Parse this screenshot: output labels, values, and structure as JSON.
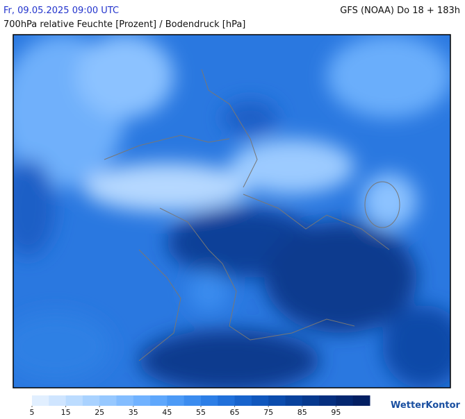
{
  "header": {
    "datetime": "Fr, 09.05.2025 09:00 UTC",
    "model": "GFS (NOAA) Do 18 + 183h",
    "title": "700hPa relative Feuchte [Prozent] / Bodendruck [hPa]"
  },
  "colorbar": {
    "range": [
      5,
      105
    ],
    "ticks": [
      5,
      15,
      25,
      35,
      45,
      55,
      65,
      75,
      85,
      95
    ],
    "colors": [
      "#e1efff",
      "#cfe5ff",
      "#bcdcff",
      "#a9d2ff",
      "#96c8ff",
      "#83bdff",
      "#70b2ff",
      "#5ea7fc",
      "#4c9af6",
      "#3b8cef",
      "#2c7ee6",
      "#2070da",
      "#1763cc",
      "#1057bd",
      "#0b4cad",
      "#08429d",
      "#06398e",
      "#052f7f",
      "#042770",
      "#031f62"
    ]
  },
  "logo": "WetterKontor"
}
